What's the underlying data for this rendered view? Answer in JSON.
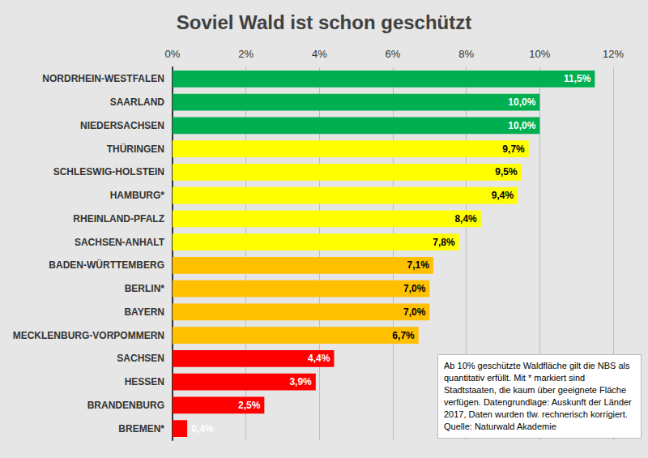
{
  "chart_data": {
    "type": "bar",
    "orientation": "horizontal",
    "title": "Soviel Wald ist schon geschützt",
    "categories": [
      "NORDRHEIN-WESTFALEN",
      "SAARLAND",
      "NIEDERSACHSEN",
      "THÜRINGEN",
      "SCHLESWIG-HOLSTEIN",
      "HAMBURG*",
      "RHEINLAND-PFALZ",
      "SACHSEN-ANHALT",
      "BADEN-WÜRTTEMBERG",
      "BERLIN*",
      "BAYERN",
      "MECKLENBURG-VORPOMMERN",
      "SACHSEN",
      "HESSEN",
      "BRANDENBURG",
      "BREMEN*"
    ],
    "values": [
      11.5,
      10.0,
      10.0,
      9.7,
      9.5,
      9.4,
      8.4,
      7.8,
      7.1,
      7.0,
      7.0,
      6.7,
      4.4,
      3.9,
      2.5,
      0.4
    ],
    "value_labels": [
      "11,5%",
      "10,0%",
      "10,0%",
      "9,7%",
      "9,5%",
      "9,4%",
      "8,4%",
      "7,8%",
      "7,1%",
      "7,0%",
      "7,0%",
      "6,7%",
      "4,4%",
      "3,9%",
      "2,5%",
      "0,4%"
    ],
    "colors": [
      "#00b050",
      "#00b050",
      "#00b050",
      "#ffff00",
      "#ffff00",
      "#ffff00",
      "#ffff00",
      "#ffff00",
      "#ffc000",
      "#ffc000",
      "#ffc000",
      "#ffc000",
      "#ff0000",
      "#ff0000",
      "#ff0000",
      "#ff0000"
    ],
    "xlim": [
      0,
      12
    ],
    "xticks": [
      {
        "value": 0,
        "label": "0%"
      },
      {
        "value": 2,
        "label": "2%"
      },
      {
        "value": 4,
        "label": "4%"
      },
      {
        "value": 6,
        "label": "6%"
      },
      {
        "value": 8,
        "label": "8%"
      },
      {
        "value": 10,
        "label": "10%"
      },
      {
        "value": 12,
        "label": "12%"
      }
    ],
    "grid": true,
    "data_labels": true,
    "annotation": "Ab 10% geschützte Waldfläche gilt die NBS als quantitativ erfüllt. Mit * markiert sind Stadtstaaten, die kaum über geeignete Fläche verfügen. Datengrundlage: Auskunft der Länder 2017, Daten wurden tlw. rechnerisch korrigiert. Quelle: Naturwald Akademie"
  }
}
